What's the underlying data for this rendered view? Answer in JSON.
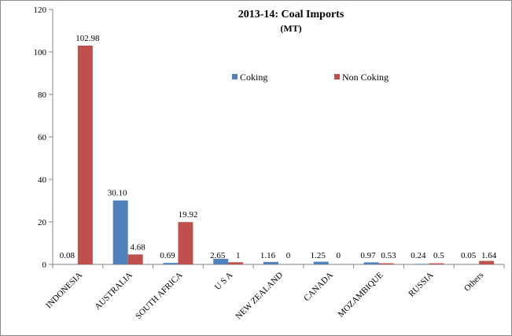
{
  "chart_data": {
    "type": "bar",
    "title": "2013-14: Coal Imports",
    "subtitle": "(MT)",
    "xlabel": "",
    "ylabel": "",
    "ylim": [
      0,
      120
    ],
    "yticks": [
      0,
      20,
      40,
      60,
      80,
      100,
      120
    ],
    "grid": false,
    "legend_position": "top-center",
    "categories": [
      "INDONESIA",
      "AUSTRALIA",
      "SOUTH AFRICA",
      "U S A",
      "NEW ZEALAND",
      "CANADA",
      "MOZAMBIQUE",
      "RUSSIA",
      "Others"
    ],
    "series": [
      {
        "name": "Coking",
        "color": "#4f81bd",
        "values": [
          0.08,
          30.1,
          0.69,
          2.65,
          1.16,
          1.25,
          0.97,
          0.24,
          0.05
        ],
        "labels": [
          "0.08",
          "30.10",
          "0.69",
          "2.65",
          "1.16",
          "1.25",
          "0.97",
          "0.24",
          "0.05"
        ]
      },
      {
        "name": "Non Coking",
        "color": "#c0504d",
        "values": [
          102.98,
          4.68,
          19.92,
          1,
          0,
          0,
          0.53,
          0.5,
          1.64
        ],
        "labels": [
          "102.98",
          "4.68",
          "19.92",
          "1",
          "0",
          "0",
          "0.53",
          "0.5",
          "1.64"
        ]
      }
    ]
  }
}
